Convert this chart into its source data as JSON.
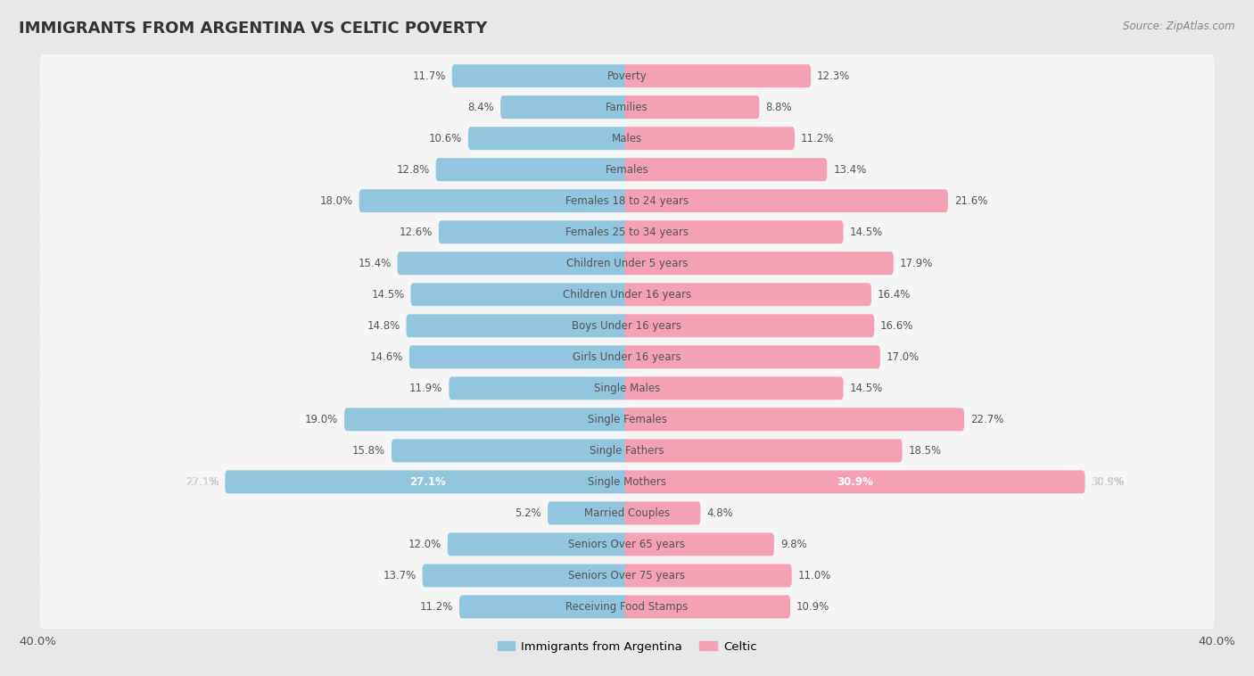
{
  "title": "IMMIGRANTS FROM ARGENTINA VS CELTIC POVERTY",
  "source": "Source: ZipAtlas.com",
  "categories": [
    "Poverty",
    "Families",
    "Males",
    "Females",
    "Females 18 to 24 years",
    "Females 25 to 34 years",
    "Children Under 5 years",
    "Children Under 16 years",
    "Boys Under 16 years",
    "Girls Under 16 years",
    "Single Males",
    "Single Females",
    "Single Fathers",
    "Single Mothers",
    "Married Couples",
    "Seniors Over 65 years",
    "Seniors Over 75 years",
    "Receiving Food Stamps"
  ],
  "argentina_values": [
    11.7,
    8.4,
    10.6,
    12.8,
    18.0,
    12.6,
    15.4,
    14.5,
    14.8,
    14.6,
    11.9,
    19.0,
    15.8,
    27.1,
    5.2,
    12.0,
    13.7,
    11.2
  ],
  "celtic_values": [
    12.3,
    8.8,
    11.2,
    13.4,
    21.6,
    14.5,
    17.9,
    16.4,
    16.6,
    17.0,
    14.5,
    22.7,
    18.5,
    30.9,
    4.8,
    9.8,
    11.0,
    10.9
  ],
  "argentina_color": "#92c5de",
  "celtic_color": "#f4a0b5",
  "background_color": "#e8e8e8",
  "row_color": "#f5f5f5",
  "xlim": 40.0,
  "legend_argentina": "Immigrants from Argentina",
  "legend_celtic": "Celtic",
  "title_fontsize": 13,
  "label_fontsize": 8.5,
  "value_fontsize": 8.5
}
